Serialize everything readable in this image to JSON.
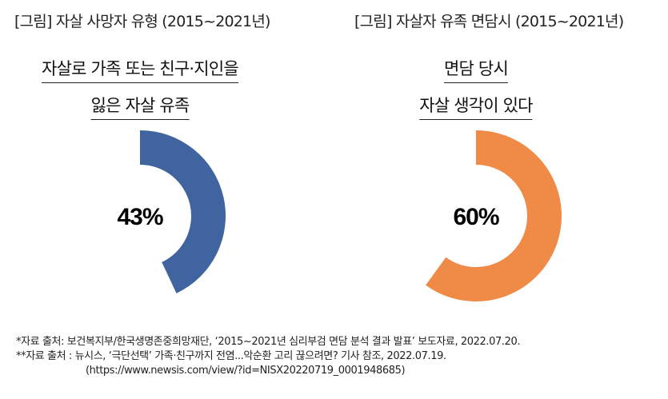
{
  "chart_data": [
    {
      "type": "pie",
      "variant": "donut",
      "title": "[그림] 자살 사망자 유형 (2015~2021년)",
      "subtitle_lines": [
        "자살로 가족 또는 친구·지인을",
        "잃은 자살 유족"
      ],
      "value": 43,
      "label": "43%",
      "color": "#40649f"
    },
    {
      "type": "pie",
      "variant": "donut",
      "title": "[그림] 자살자 유족 면담시 (2015~2021년)",
      "subtitle_lines": [
        "면담 당시",
        "자살 생각이 있다"
      ],
      "value": 60,
      "label": "60%",
      "color": "#ef8a47"
    }
  ],
  "notes": [
    "*자료 출처: 보건복지부/한국생명존중희망재단, ‘2015~2021년 심리부검 면담 분석 결과 발표’ 보도자료, 2022.07.20.",
    "**자료 출처 : 뉴시스, ‘극단선택’ 가족·친구까지 전염...악순환 고리 끊으려면? 기사 참조, 2022.07.19.",
    "(https://www.newsis.com/view/?id=NISX20220719_0001948685)"
  ]
}
